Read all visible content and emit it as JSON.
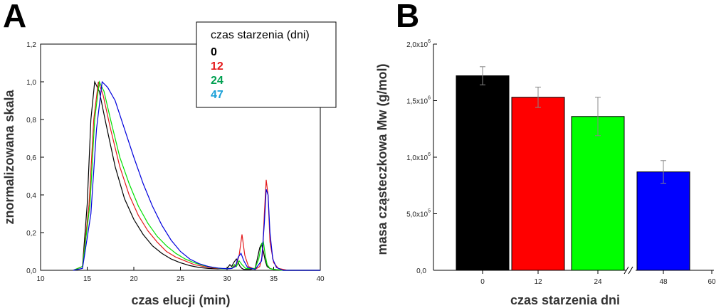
{
  "chart_data": [
    {
      "panel": "A",
      "type": "line",
      "xlabel": "czas elucji (min)",
      "ylabel": "znormalizowana skala",
      "xlim": [
        10,
        40
      ],
      "ylim": [
        0.0,
        1.2
      ],
      "x_ticks": [
        "10",
        "15",
        "20",
        "25",
        "30",
        "35",
        "40"
      ],
      "y_ticks": [
        "0,0",
        "0,2",
        "0,4",
        "0,6",
        "0,8",
        "1,0",
        "1,2"
      ],
      "legend": {
        "title": "czas starzenia (dni)",
        "entries": [
          "0",
          "12",
          "24",
          "47"
        ]
      },
      "series": [
        {
          "name": "0",
          "color": "#000000",
          "x": [
            13.5,
            14.5,
            15.0,
            15.4,
            15.8,
            16.3,
            17.0,
            18.0,
            19.0,
            20.0,
            21.0,
            22.0,
            23.0,
            24.0,
            25.0,
            26.0,
            27.0,
            28.0,
            29.0,
            30.0,
            30.3,
            30.5,
            30.7,
            31.0,
            31.2,
            31.4,
            31.6,
            31.8,
            32.0,
            32.5,
            33.0,
            33.2,
            33.5,
            33.7,
            33.9,
            34.1,
            34.3,
            34.6,
            35.0,
            36.0,
            40.0
          ],
          "y": [
            0.0,
            0.02,
            0.35,
            0.8,
            1.0,
            0.95,
            0.78,
            0.55,
            0.38,
            0.27,
            0.19,
            0.13,
            0.09,
            0.06,
            0.04,
            0.025,
            0.015,
            0.01,
            0.008,
            0.01,
            0.03,
            0.02,
            0.04,
            0.06,
            0.04,
            0.02,
            0.01,
            0.005,
            0.005,
            0.005,
            0.01,
            0.05,
            0.12,
            0.14,
            0.1,
            0.05,
            0.02,
            0.01,
            0.005,
            0.0,
            0.0
          ]
        },
        {
          "name": "12",
          "color": "#e41a1c",
          "x": [
            13.5,
            14.5,
            15.2,
            15.7,
            16.2,
            16.7,
            17.5,
            18.5,
            19.5,
            20.5,
            21.5,
            22.5,
            23.5,
            24.5,
            25.5,
            26.5,
            27.5,
            28.5,
            29.5,
            30.5,
            31.0,
            31.3,
            31.6,
            31.9,
            32.3,
            33.0,
            33.5,
            33.8,
            34.0,
            34.2,
            34.4,
            34.6,
            35.0,
            35.5,
            36.5,
            40.0
          ],
          "y": [
            0.0,
            0.02,
            0.35,
            0.8,
            1.0,
            0.93,
            0.75,
            0.55,
            0.4,
            0.29,
            0.21,
            0.15,
            0.1,
            0.07,
            0.05,
            0.03,
            0.02,
            0.012,
            0.008,
            0.01,
            0.03,
            0.08,
            0.19,
            0.08,
            0.02,
            0.005,
            0.02,
            0.08,
            0.3,
            0.48,
            0.4,
            0.15,
            0.04,
            0.01,
            0.0,
            0.0
          ]
        },
        {
          "name": "24",
          "color": "#00e000",
          "x": [
            13.5,
            14.5,
            15.3,
            15.8,
            16.3,
            16.8,
            17.5,
            18.5,
            19.5,
            20.5,
            21.5,
            22.5,
            23.5,
            24.5,
            25.5,
            26.5,
            27.5,
            28.5,
            29.5,
            30.5,
            30.8,
            31.0,
            31.3,
            31.6,
            32.0,
            33.0,
            33.4,
            33.7,
            33.9,
            34.1,
            34.3,
            34.6,
            35.0,
            36.0,
            40.0
          ],
          "y": [
            0.0,
            0.02,
            0.35,
            0.8,
            1.0,
            0.95,
            0.8,
            0.6,
            0.46,
            0.34,
            0.25,
            0.18,
            0.13,
            0.09,
            0.06,
            0.04,
            0.025,
            0.015,
            0.008,
            0.01,
            0.03,
            0.02,
            0.05,
            0.03,
            0.01,
            0.01,
            0.06,
            0.14,
            0.15,
            0.08,
            0.03,
            0.01,
            0.005,
            0.0,
            0.0
          ]
        },
        {
          "name": "47",
          "color": "#0000dd",
          "x": [
            13.5,
            14.5,
            15.4,
            16.0,
            16.6,
            17.2,
            18.0,
            19.0,
            20.0,
            21.0,
            22.0,
            23.0,
            24.0,
            25.0,
            26.0,
            27.0,
            28.0,
            29.0,
            30.0,
            30.5,
            30.9,
            31.2,
            31.5,
            31.8,
            32.2,
            33.0,
            33.7,
            34.0,
            34.2,
            34.4,
            34.6,
            34.9,
            35.3,
            36.0,
            40.0
          ],
          "y": [
            0.0,
            0.01,
            0.3,
            0.75,
            1.0,
            0.97,
            0.9,
            0.75,
            0.6,
            0.46,
            0.34,
            0.24,
            0.16,
            0.1,
            0.06,
            0.035,
            0.02,
            0.012,
            0.008,
            0.01,
            0.02,
            0.07,
            0.09,
            0.05,
            0.015,
            0.005,
            0.05,
            0.25,
            0.43,
            0.4,
            0.2,
            0.06,
            0.015,
            0.0,
            0.0
          ]
        }
      ]
    },
    {
      "panel": "B",
      "type": "bar",
      "xlabel": "czas starzenia dni",
      "ylabel": "masa cząsteczkowa Mw (g/mol)",
      "xlim": [
        -10,
        60
      ],
      "ylim": [
        0,
        2000000
      ],
      "x_ticks": [
        "0",
        "12",
        "24",
        "48",
        "60"
      ],
      "y_ticks": [
        {
          "mantissa": "0,0",
          "exp": ""
        },
        {
          "mantissa": "5,0x10",
          "exp": "5"
        },
        {
          "mantissa": "1,0x10",
          "exp": "6"
        },
        {
          "mantissa": "1,5x10",
          "exp": "6"
        },
        {
          "mantissa": "2,0x10",
          "exp": "6"
        }
      ],
      "axis_break": "//",
      "bars": [
        {
          "category": "0",
          "value": 1720000,
          "error": 80000,
          "color": "#000000"
        },
        {
          "category": "12",
          "value": 1530000,
          "error": 90000,
          "color": "#ff0000"
        },
        {
          "category": "24",
          "value": 1360000,
          "error": 170000,
          "color": "#00ff00"
        },
        {
          "category": "48",
          "value": 870000,
          "error": 100000,
          "color": "#0000ff"
        }
      ]
    }
  ]
}
